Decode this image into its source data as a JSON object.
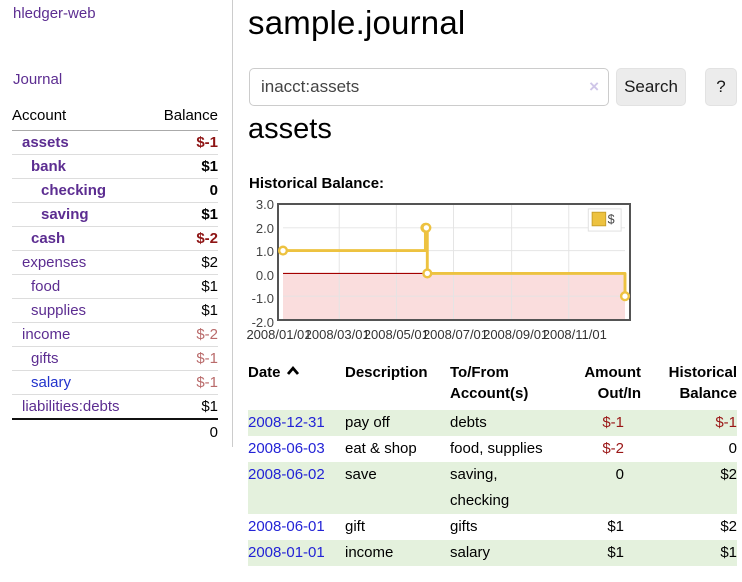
{
  "sidebar": {
    "brand": "hledger-web",
    "nav": {
      "journal": "Journal"
    },
    "accounts_table": {
      "headers": {
        "account": "Account",
        "balance": "Balance"
      },
      "rows": [
        {
          "name": "assets",
          "balance": "$-1",
          "indent": 1,
          "bold": true,
          "visited": false
        },
        {
          "name": "bank",
          "balance": "$1",
          "indent": 2,
          "bold": true,
          "visited": false
        },
        {
          "name": "checking",
          "balance": "0",
          "indent": 3,
          "bold": true,
          "visited": false
        },
        {
          "name": "saving",
          "balance": "$1",
          "indent": 3,
          "bold": true,
          "visited": false
        },
        {
          "name": "cash",
          "balance": "$-2",
          "indent": 2,
          "bold": true,
          "visited": false
        },
        {
          "name": "expenses",
          "balance": "$2",
          "indent": 1,
          "bold": false,
          "visited": false
        },
        {
          "name": "food",
          "balance": "$1",
          "indent": 2,
          "bold": false,
          "visited": false
        },
        {
          "name": "supplies",
          "balance": "$1",
          "indent": 2,
          "bold": false,
          "visited": false
        },
        {
          "name": "income",
          "balance": "$-2",
          "indent": 1,
          "bold": false,
          "visited": false
        },
        {
          "name": "gifts",
          "balance": "$-1",
          "indent": 2,
          "bold": false,
          "visited": false
        },
        {
          "name": "salary",
          "balance": "$-1",
          "indent": 2,
          "bold": false,
          "visited": true
        },
        {
          "name": "liabilities:debts",
          "balance": "$1",
          "indent": 1,
          "bold": false,
          "visited": false
        }
      ],
      "total": "0"
    }
  },
  "header": {
    "title": "sample.journal"
  },
  "search": {
    "query": "inacct:assets",
    "clear_icon": "×",
    "search_label": "Search",
    "help_label": "?"
  },
  "account_page": {
    "title": "assets"
  },
  "chart_data": {
    "type": "line",
    "step": true,
    "title": "Historical Balance:",
    "legend": [
      {
        "label": "$",
        "color": "#edc240"
      }
    ],
    "series": [
      {
        "name": "$",
        "points": [
          {
            "date": "2008-01-01",
            "value": 1
          },
          {
            "date": "2008-06-01",
            "value": 2
          },
          {
            "date": "2008-06-02",
            "value": 2
          },
          {
            "date": "2008-06-03",
            "value": 0
          },
          {
            "date": "2008-12-31",
            "value": -1
          }
        ]
      }
    ],
    "xlim": [
      "2008-01-01",
      "2008-12-31"
    ],
    "ylim": [
      -2,
      3
    ],
    "y_ticks": [
      "3.0",
      "2.0",
      "1.0",
      "0.0",
      "-1.0",
      "-2.0"
    ],
    "x_ticks": [
      "2008/01/01",
      "2008/03/01",
      "2008/05/01",
      "2008/07/01",
      "2008/09/01",
      "2008/11/01"
    ],
    "grid": true,
    "legend_position": "top-right",
    "line_color": "#edc240",
    "zero_line_color": "#a40000",
    "negative_region_fill": "#fadddd"
  },
  "register_table": {
    "sort": {
      "column": "date",
      "direction": "ascending"
    },
    "headers": {
      "date": "Date",
      "description": "Description",
      "accounts": [
        "To/From",
        "Account(s)"
      ],
      "amount": [
        "Amount",
        "Out/In"
      ],
      "balance": [
        "Historical",
        "Balance"
      ]
    },
    "rows": [
      {
        "date": "2008-12-31",
        "description": "pay off",
        "accounts": "debts",
        "amount": "$-1",
        "balance": "$-1"
      },
      {
        "date": "2008-06-03",
        "description": "eat & shop",
        "accounts": "food, supplies",
        "amount": "$-2",
        "balance": "0"
      },
      {
        "date": "2008-06-02",
        "description": "save",
        "accounts": "saving, checking",
        "amount": "0",
        "balance": "$2"
      },
      {
        "date": "2008-06-01",
        "description": "gift",
        "accounts": "gifts",
        "amount": "$1",
        "balance": "$2"
      },
      {
        "date": "2008-01-01",
        "description": "income",
        "accounts": "salary",
        "amount": "$1",
        "balance": "$1"
      }
    ]
  },
  "colors": {
    "accent_purple": "#5c2d91",
    "link_blue": "#2323d6",
    "negative_strong": "#8e1414",
    "negative_soft": "#b96a6a",
    "row_green": "#e4f1dd",
    "chart_line": "#edc240",
    "chart_zero_line": "#a40000",
    "chart_negative_bg": "#fadddd"
  }
}
